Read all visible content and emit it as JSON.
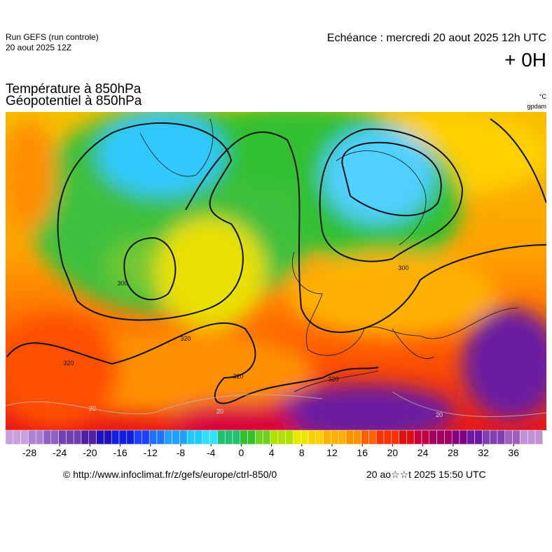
{
  "header": {
    "run": "Run GEFS (run controle)",
    "run_date": "20 aout 2025 12Z",
    "echeance": "Echéance : mercredi 20 aout 2025 12h UTC",
    "lead": "+ 0H"
  },
  "titles": {
    "line1": "Température à 850hPa",
    "line2": "Géopotentiel à 850hPa",
    "unit1": "°C",
    "unit2": "gpdam"
  },
  "map_labels": [
    "300",
    "300",
    "320",
    "320",
    "320",
    "320",
    "20",
    "20",
    "20"
  ],
  "colorbar": {
    "ticks": [
      -28,
      -24,
      -20,
      -16,
      -12,
      -8,
      -4,
      0,
      4,
      8,
      12,
      16,
      20,
      24,
      28,
      32,
      36
    ]
  },
  "footer": {
    "source": "© http://www.infoclimat.fr/z/gefs/europe/ctrl-850/0",
    "generated": "20 ao☆☆t 2025 15:50 UTC"
  }
}
